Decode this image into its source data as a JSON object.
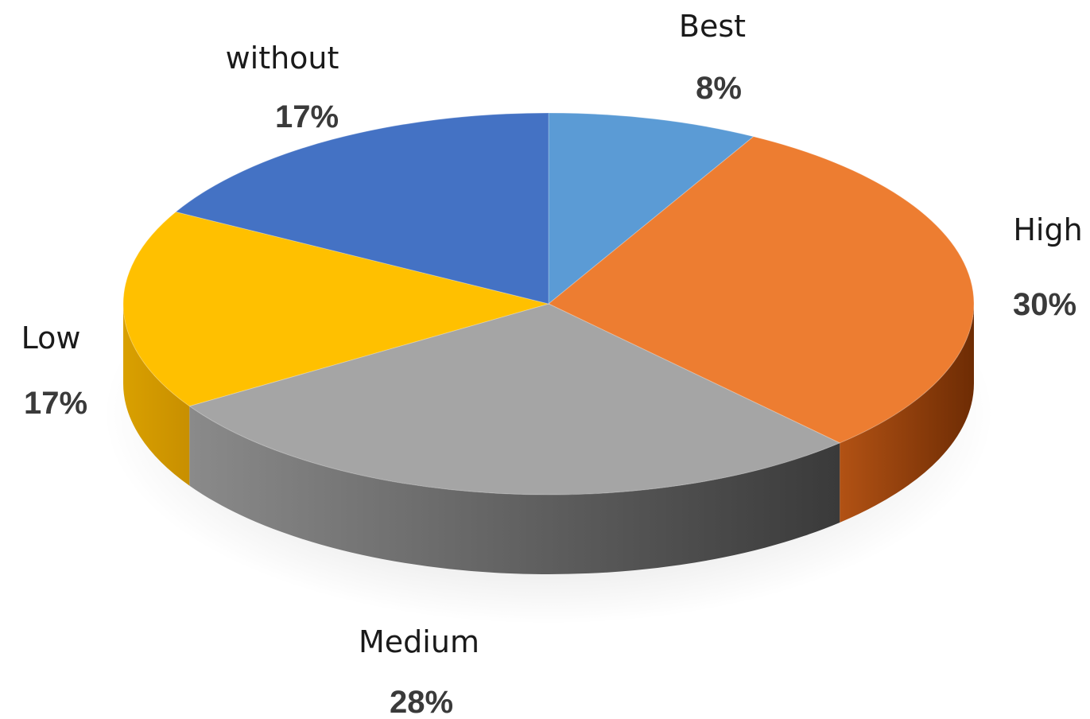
{
  "chart_data": {
    "type": "pie",
    "title": "",
    "categories": [
      "Best",
      "High",
      "Medium",
      "Low",
      "without"
    ],
    "values": [
      8,
      30,
      28,
      17,
      17
    ],
    "value_labels": [
      "8%",
      "30%",
      "28%",
      "17%",
      "17%"
    ],
    "unit": "%",
    "legend": "none",
    "style": "3d",
    "colors": [
      "#5b9bd5",
      "#ed7d31",
      "#a5a5a5",
      "#ffc000",
      "#4472c4"
    ]
  }
}
